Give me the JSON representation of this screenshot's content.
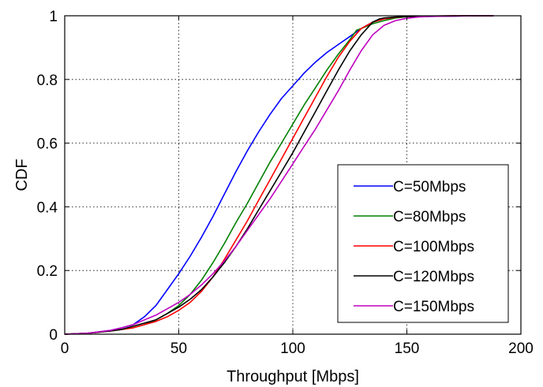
{
  "chart_data": {
    "type": "line",
    "title": "",
    "xlabel": "Throughput [Mbps]",
    "ylabel": "CDF",
    "xlim": [
      0,
      200
    ],
    "ylim": [
      0,
      1
    ],
    "xticks": [
      0,
      50,
      100,
      150,
      200
    ],
    "yticks": [
      0,
      0.2,
      0.4,
      0.6,
      0.8,
      1
    ],
    "xtick_labels": [
      "0",
      "50",
      "100",
      "150",
      "200"
    ],
    "ytick_labels": [
      "0",
      "0.2",
      "0.4",
      "0.6",
      "0.8",
      "1"
    ],
    "grid": true,
    "legend_position": "bottom-right",
    "series": [
      {
        "name": "C=50Mbps",
        "color": "#0000ff",
        "x": [
          0,
          10,
          20,
          25,
          30,
          35,
          40,
          45,
          50,
          55,
          60,
          65,
          70,
          75,
          80,
          85,
          90,
          95,
          100,
          105,
          110,
          115,
          120,
          125,
          130,
          135,
          140,
          145,
          150,
          160,
          170,
          180,
          188
        ],
        "y": [
          0,
          0.003,
          0.012,
          0.02,
          0.03,
          0.055,
          0.09,
          0.14,
          0.19,
          0.245,
          0.305,
          0.37,
          0.44,
          0.51,
          0.575,
          0.635,
          0.69,
          0.74,
          0.78,
          0.82,
          0.855,
          0.885,
          0.91,
          0.935,
          0.96,
          0.98,
          0.99,
          0.995,
          0.997,
          0.998,
          0.999,
          1.0,
          1.0
        ]
      },
      {
        "name": "C=80Mbps",
        "color": "#008000",
        "x": [
          0,
          10,
          20,
          25,
          30,
          35,
          40,
          45,
          50,
          55,
          60,
          65,
          70,
          75,
          80,
          85,
          90,
          95,
          100,
          105,
          110,
          115,
          120,
          125,
          128,
          130,
          135,
          140,
          145,
          150,
          160,
          170,
          180,
          188
        ],
        "y": [
          0,
          0.003,
          0.01,
          0.015,
          0.02,
          0.03,
          0.045,
          0.065,
          0.09,
          0.125,
          0.17,
          0.225,
          0.285,
          0.35,
          0.41,
          0.475,
          0.54,
          0.6,
          0.66,
          0.72,
          0.775,
          0.83,
          0.88,
          0.925,
          0.955,
          0.96,
          0.975,
          0.985,
          0.993,
          0.997,
          0.998,
          0.999,
          1.0,
          1.0
        ]
      },
      {
        "name": "C=100Mbps",
        "color": "#ff0000",
        "x": [
          0,
          10,
          20,
          25,
          30,
          35,
          40,
          45,
          50,
          55,
          60,
          65,
          70,
          75,
          80,
          85,
          90,
          95,
          100,
          105,
          110,
          115,
          120,
          125,
          130,
          135,
          140,
          145,
          150,
          160,
          170,
          180,
          188
        ],
        "y": [
          0,
          0.003,
          0.01,
          0.015,
          0.02,
          0.03,
          0.04,
          0.055,
          0.075,
          0.1,
          0.135,
          0.18,
          0.235,
          0.295,
          0.355,
          0.42,
          0.485,
          0.55,
          0.615,
          0.68,
          0.745,
          0.81,
          0.87,
          0.92,
          0.96,
          0.98,
          0.99,
          0.995,
          0.998,
          0.999,
          1.0,
          1.0,
          1.0
        ]
      },
      {
        "name": "C=120Mbps",
        "color": "#000000",
        "x": [
          0,
          10,
          20,
          25,
          30,
          35,
          40,
          45,
          50,
          55,
          60,
          65,
          70,
          75,
          80,
          85,
          90,
          95,
          100,
          105,
          110,
          115,
          120,
          125,
          130,
          135,
          138,
          140,
          145,
          150,
          160,
          170,
          180,
          188
        ],
        "y": [
          0,
          0.003,
          0.01,
          0.015,
          0.025,
          0.035,
          0.045,
          0.065,
          0.085,
          0.11,
          0.14,
          0.18,
          0.225,
          0.275,
          0.33,
          0.39,
          0.45,
          0.51,
          0.57,
          0.635,
          0.7,
          0.765,
          0.83,
          0.89,
          0.94,
          0.98,
          0.99,
          0.993,
          0.996,
          0.998,
          0.999,
          1.0,
          1.0,
          1.0
        ]
      },
      {
        "name": "C=150Mbps",
        "color": "#bf00bf",
        "x": [
          0,
          10,
          20,
          25,
          30,
          35,
          40,
          45,
          50,
          55,
          60,
          65,
          70,
          75,
          80,
          85,
          90,
          95,
          100,
          105,
          110,
          115,
          120,
          125,
          130,
          135,
          140,
          145,
          150,
          155,
          160,
          170,
          180,
          188
        ],
        "y": [
          0,
          0.003,
          0.012,
          0.02,
          0.03,
          0.045,
          0.06,
          0.08,
          0.1,
          0.125,
          0.155,
          0.19,
          0.23,
          0.275,
          0.325,
          0.375,
          0.425,
          0.48,
          0.535,
          0.59,
          0.645,
          0.705,
          0.765,
          0.83,
          0.89,
          0.94,
          0.97,
          0.985,
          0.992,
          0.996,
          0.998,
          0.999,
          1.0,
          1.0
        ]
      }
    ]
  }
}
